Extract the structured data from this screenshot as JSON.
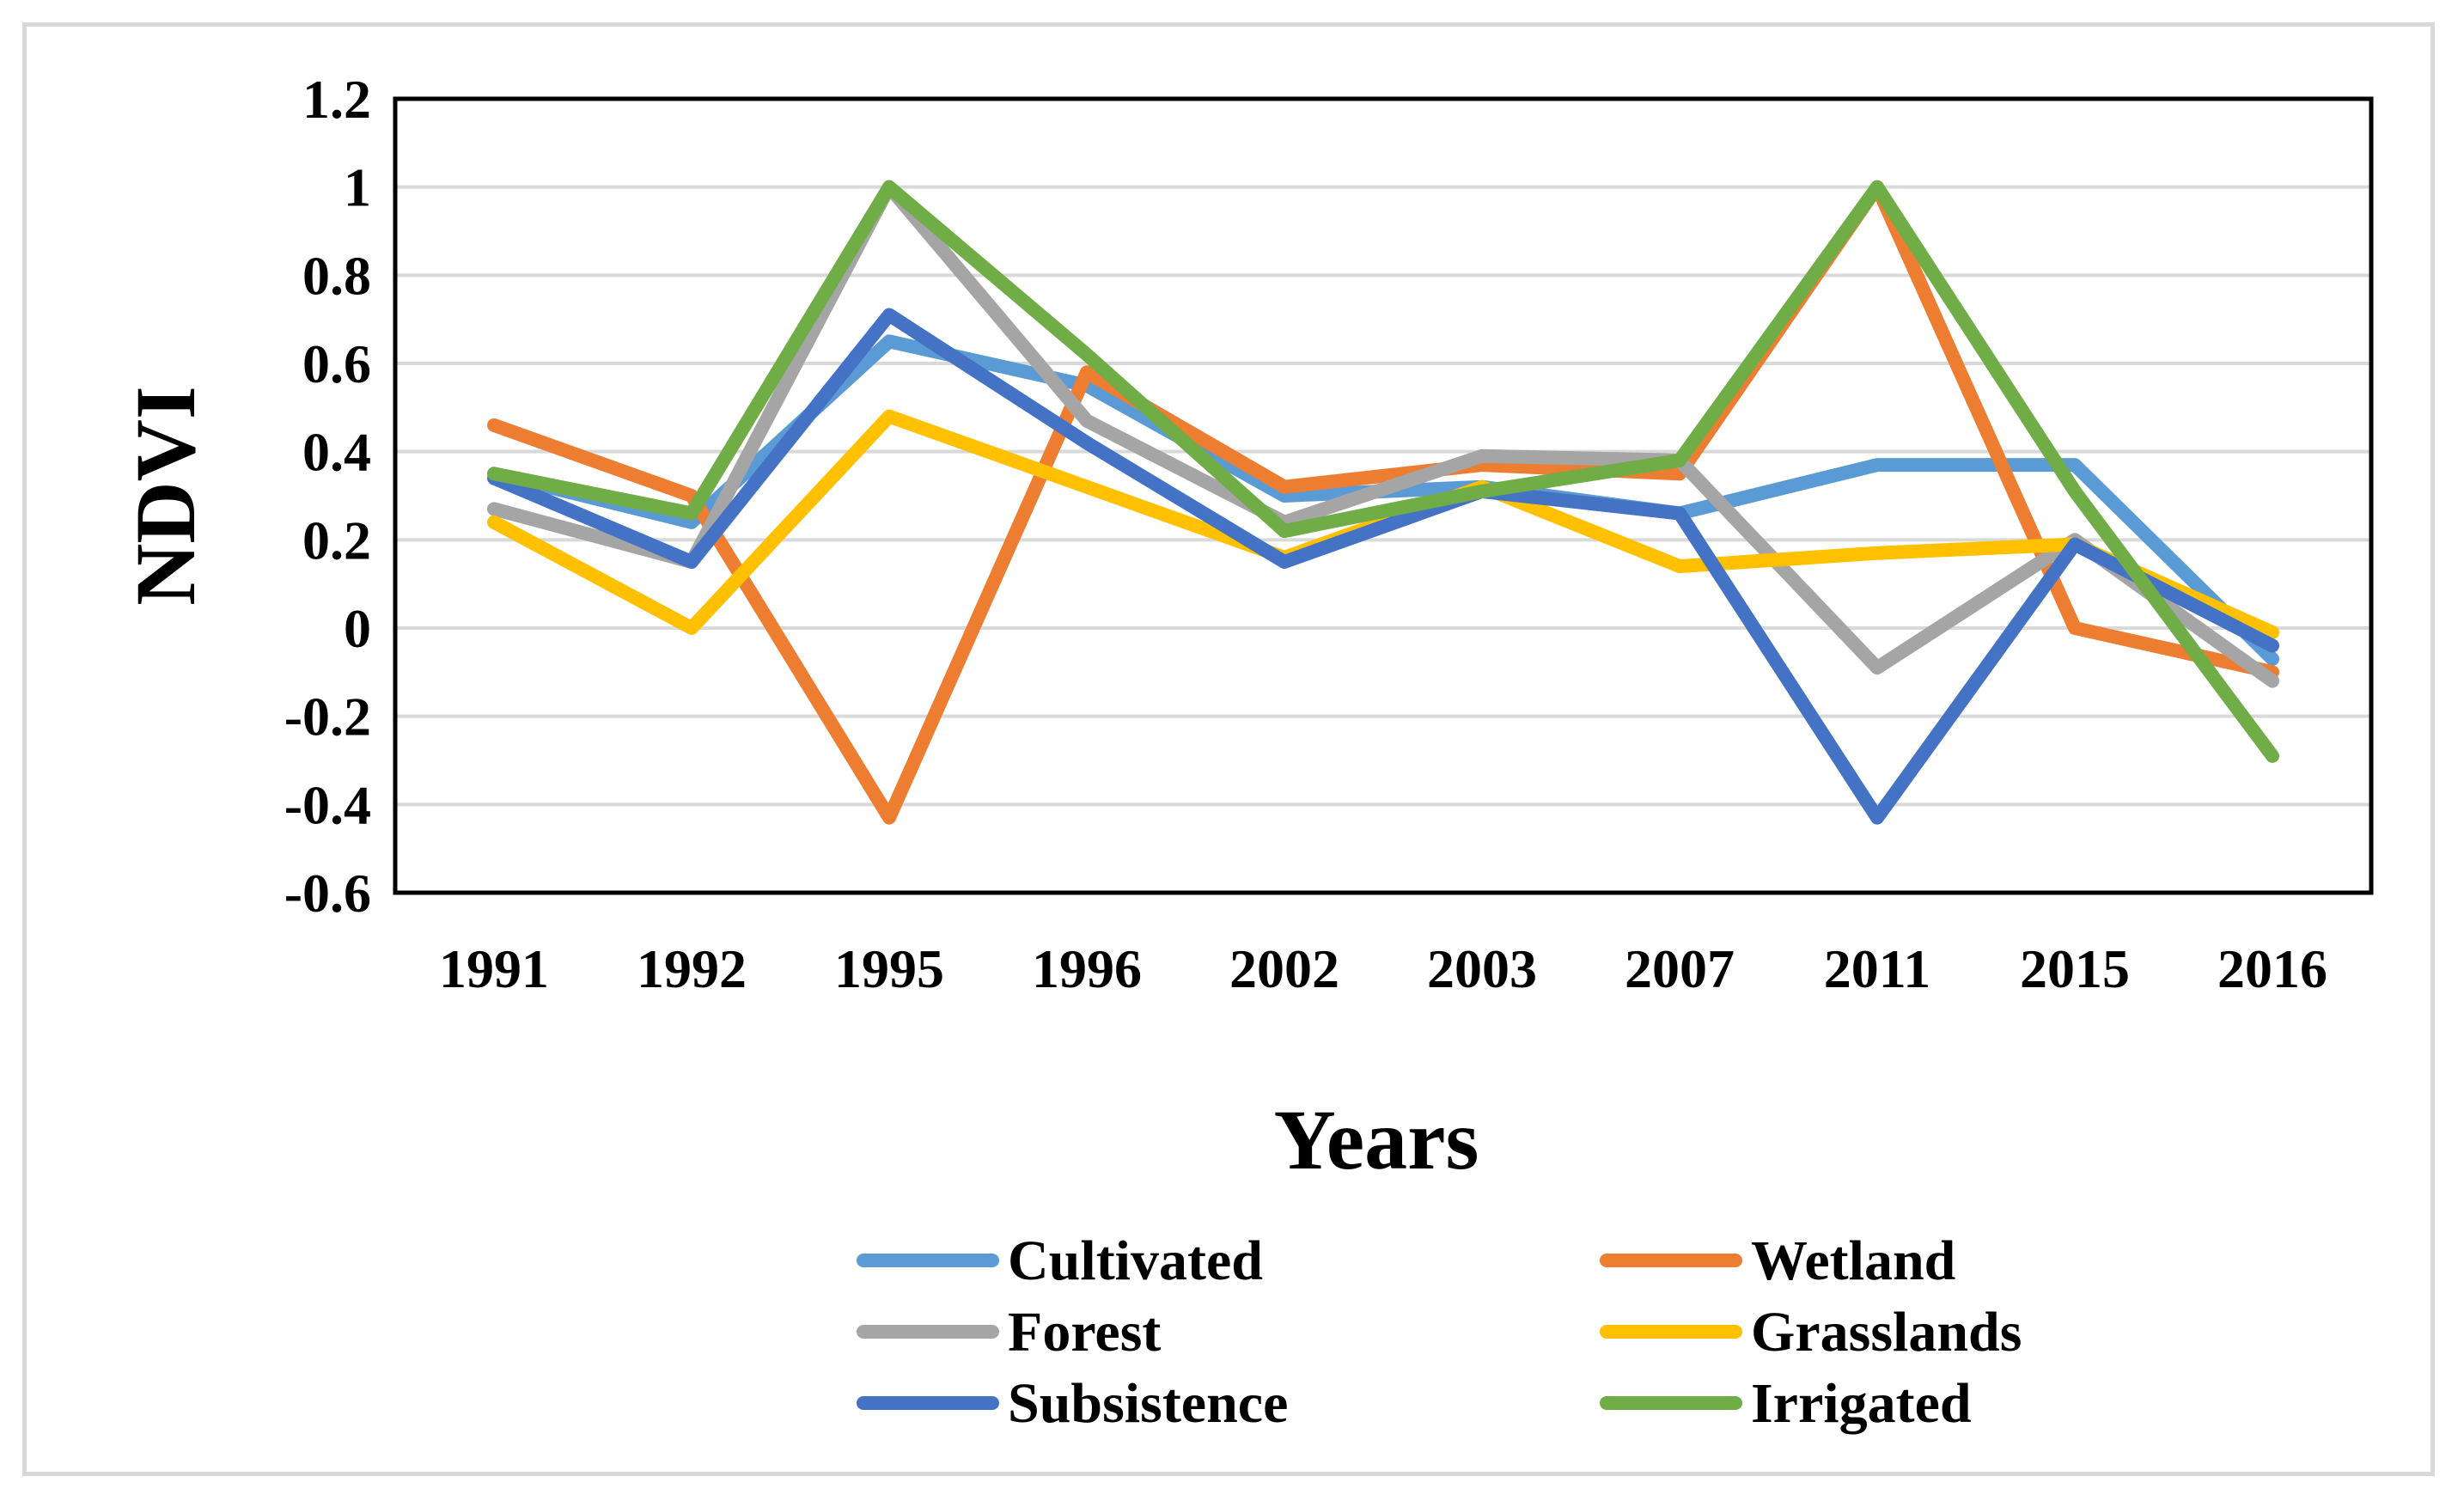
{
  "chart_data": {
    "type": "line",
    "title": "",
    "xlabel": "Years",
    "ylabel": "NDVI",
    "categories": [
      "1991",
      "1992",
      "1995",
      "1996",
      "2002",
      "2003",
      "2007",
      "2011",
      "2015",
      "2016"
    ],
    "ylim": [
      -0.6,
      1.2
    ],
    "ytick_values": [
      -0.6,
      -0.4,
      -0.2,
      0,
      0.2,
      0.4,
      0.6,
      0.8,
      1,
      1.2
    ],
    "ytick_labels": [
      "-0.6",
      "-0.4",
      "-0.2",
      "0",
      "0.2",
      "0.4",
      "0.6",
      "0.8",
      "1",
      "1.2"
    ],
    "grid": true,
    "legend_position": "bottom",
    "series": [
      {
        "name": "Cultivated",
        "color": "#5b9bd5",
        "values": [
          0.35,
          0.24,
          0.65,
          0.55,
          0.3,
          0.32,
          0.26,
          0.37,
          0.37,
          -0.07
        ]
      },
      {
        "name": "Wetland",
        "color": "#ed7d31",
        "values": [
          0.46,
          0.3,
          -0.43,
          0.58,
          0.32,
          0.37,
          0.35,
          1.0,
          0.0,
          -0.1
        ]
      },
      {
        "name": "Forest",
        "color": "#a5a5a5",
        "values": [
          0.27,
          0.15,
          1.0,
          0.47,
          0.24,
          0.39,
          0.38,
          -0.09,
          0.2,
          -0.12
        ]
      },
      {
        "name": "Grasslands",
        "color": "#ffc000",
        "values": [
          0.24,
          0.0,
          0.48,
          0.32,
          0.16,
          0.32,
          0.14,
          0.17,
          0.19,
          -0.01
        ]
      },
      {
        "name": "Subsistence",
        "color": "#4472c4",
        "values": [
          0.34,
          0.15,
          0.71,
          0.42,
          0.15,
          0.31,
          0.26,
          -0.43,
          0.19,
          -0.04
        ]
      },
      {
        "name": "Irrigated",
        "color": "#70ad47",
        "values": [
          0.35,
          0.26,
          1.0,
          0.62,
          0.22,
          0.31,
          0.38,
          1.0,
          0.31,
          -0.29
        ]
      }
    ]
  }
}
